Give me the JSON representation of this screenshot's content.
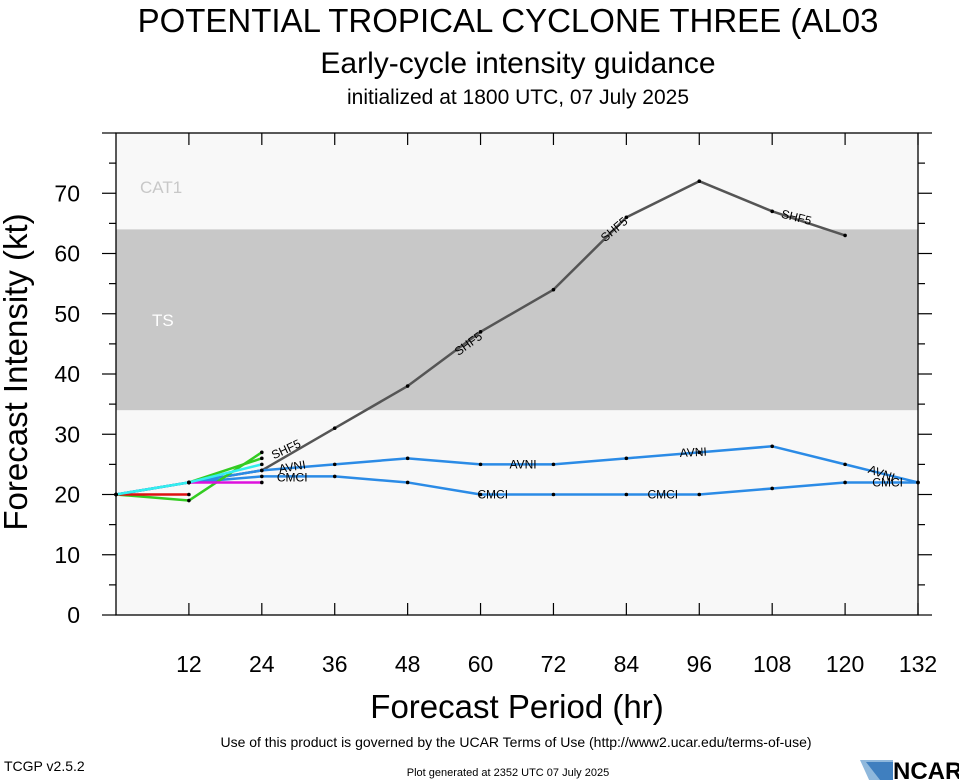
{
  "header": {
    "title": "POTENTIAL TROPICAL CYCLONE THREE (AL03",
    "subtitle": "Early-cycle intensity guidance",
    "initialized": "initialized at 1800 UTC, 07 July 2025"
  },
  "footer": {
    "terms": "Use of this product is governed by the UCAR Terms of Use (http://www2.ucar.edu/terms-of-use)",
    "version": "TCGP v2.5.2",
    "generated": "Plot generated at 2352 UTC   07 July 2025",
    "logo_text": "NCAR"
  },
  "colors": {
    "background": "#ffffff",
    "plot_bg": "#f8f8f8",
    "ts_band": "#c8c8c8",
    "band_label": "#ffffff",
    "cat1_label": "#c8c8c8",
    "shf5": "#555555",
    "blue": "#2b8be6",
    "green": "#33cc22",
    "red": "#dd1111",
    "magenta": "#dd11dd",
    "cyan": "#33eeee"
  },
  "chart_data": {
    "type": "line",
    "title": "POTENTIAL TROPICAL CYCLONE THREE (AL03",
    "subtitle": "Early-cycle intensity guidance",
    "xlabel": "Forecast Period (hr)",
    "ylabel": "Forecast Intensity (kt)",
    "xlim": [
      0,
      132
    ],
    "ylim": [
      0,
      80
    ],
    "xticks": [
      12,
      24,
      36,
      48,
      60,
      72,
      84,
      96,
      108,
      120,
      132
    ],
    "yticks": [
      0,
      10,
      20,
      30,
      40,
      50,
      60,
      70
    ],
    "grid": false,
    "bands": [
      {
        "name": "TS",
        "from": 34,
        "to": 64
      },
      {
        "name": "CAT1",
        "from": 64,
        "to": 80
      }
    ],
    "series": [
      {
        "name": "SHF5",
        "color": "#555555",
        "x": [
          0,
          12,
          24,
          36,
          48,
          60,
          72,
          84,
          96,
          108,
          120
        ],
        "y": [
          20,
          22,
          24,
          31,
          38,
          47,
          54,
          66,
          72,
          67,
          63
        ]
      },
      {
        "name": "AVNI",
        "color": "#2b8be6",
        "x": [
          0,
          12,
          24,
          36,
          48,
          60,
          72,
          84,
          96,
          108,
          120,
          132
        ],
        "y": [
          20,
          22,
          24,
          25,
          26,
          25,
          25,
          26,
          27,
          28,
          25,
          22
        ]
      },
      {
        "name": "CMCI",
        "color": "#2b8be6",
        "x": [
          0,
          12,
          24,
          36,
          48,
          60,
          72,
          84,
          96,
          108,
          120,
          132
        ],
        "y": [
          20,
          22,
          23,
          23,
          22,
          20,
          20,
          20,
          20,
          21,
          22,
          22
        ]
      },
      {
        "color": "#33cc22",
        "x": [
          0,
          12,
          24
        ],
        "y": [
          20,
          19,
          27
        ]
      },
      {
        "color": "#33cc22",
        "x": [
          12,
          24
        ],
        "y": [
          22,
          26
        ]
      },
      {
        "color": "#dd1111",
        "x": [
          0,
          12
        ],
        "y": [
          20,
          20
        ]
      },
      {
        "color": "#dd11dd",
        "x": [
          12,
          24
        ],
        "y": [
          22,
          22
        ]
      },
      {
        "color": "#33eeee",
        "x": [
          0,
          12,
          24
        ],
        "y": [
          20,
          22,
          25
        ]
      }
    ],
    "labels": [
      {
        "series": "SHF5",
        "x": 28,
        "y": 27.5,
        "rot": -25
      },
      {
        "series": "SHF5",
        "x": 58,
        "y": 45,
        "rot": -36
      },
      {
        "series": "SHF5",
        "x": 82,
        "y": 64,
        "rot": -40
      },
      {
        "series": "SHF5",
        "x": 112,
        "y": 66,
        "rot": 14
      },
      {
        "series": "AVNI",
        "x": 29,
        "y": 24.6,
        "rot": -10
      },
      {
        "series": "AVNI",
        "x": 67,
        "y": 25,
        "rot": 0
      },
      {
        "series": "AVNI",
        "x": 95,
        "y": 27,
        "rot": -3
      },
      {
        "series": "AVNI",
        "x": 126,
        "y": 23.5,
        "rot": 20
      },
      {
        "series": "CMCI",
        "x": 29,
        "y": 22.8,
        "rot": 0
      },
      {
        "series": "CMCI",
        "x": 62,
        "y": 20,
        "rot": 0
      },
      {
        "series": "CMCI",
        "x": 90,
        "y": 20,
        "rot": 0
      },
      {
        "series": "CMCI",
        "x": 127,
        "y": 22,
        "rot": 0
      }
    ]
  }
}
